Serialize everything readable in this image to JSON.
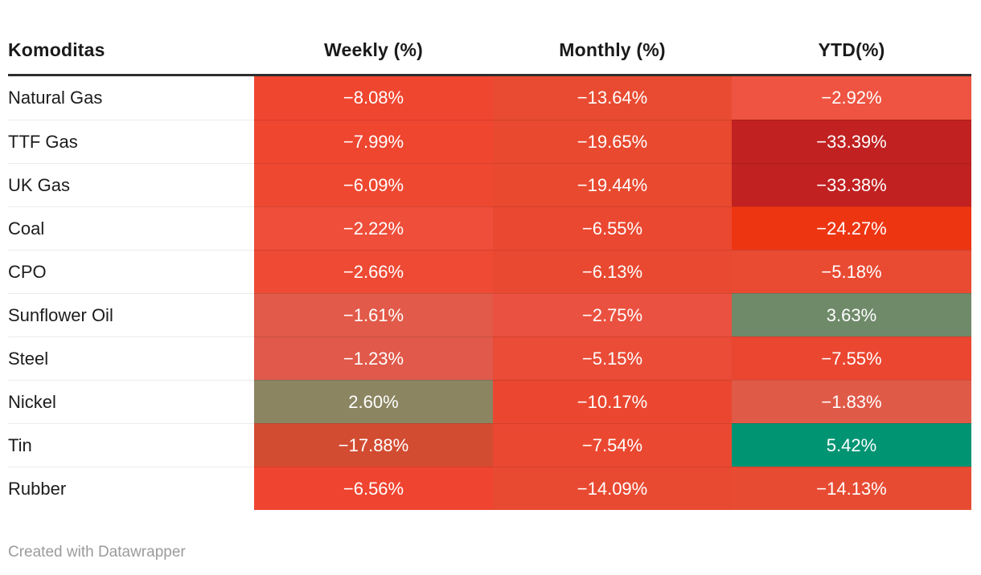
{
  "table": {
    "columns": [
      "Komoditas",
      "Weekly (%)",
      "Monthly (%)",
      "YTD(%)"
    ],
    "rows": [
      {
        "label": "Natural Gas",
        "cells": [
          {
            "text": "−8.08%",
            "bg": "#ef4630"
          },
          {
            "text": "−13.64%",
            "bg": "#e84b31"
          },
          {
            "text": "−2.92%",
            "bg": "#ee5441"
          }
        ]
      },
      {
        "label": "TTF Gas",
        "cells": [
          {
            "text": "−7.99%",
            "bg": "#ef4630"
          },
          {
            "text": "−19.65%",
            "bg": "#e8492f"
          },
          {
            "text": "−33.39%",
            "bg": "#c12121"
          }
        ]
      },
      {
        "label": "UK Gas",
        "cells": [
          {
            "text": "−6.09%",
            "bg": "#ee4831"
          },
          {
            "text": "−19.44%",
            "bg": "#e8492f"
          },
          {
            "text": "−33.38%",
            "bg": "#c12121"
          }
        ]
      },
      {
        "label": "Coal",
        "cells": [
          {
            "text": "−2.22%",
            "bg": "#ee4e3a"
          },
          {
            "text": "−6.55%",
            "bg": "#eb4831"
          },
          {
            "text": "−24.27%",
            "bg": "#ee3512"
          }
        ]
      },
      {
        "label": "CPO",
        "cells": [
          {
            "text": "−2.66%",
            "bg": "#ee4a34"
          },
          {
            "text": "−6.13%",
            "bg": "#e94931"
          },
          {
            "text": "−5.18%",
            "bg": "#e94a32"
          }
        ]
      },
      {
        "label": "Sunflower Oil",
        "cells": [
          {
            "text": "−1.61%",
            "bg": "#e25a49"
          },
          {
            "text": "−2.75%",
            "bg": "#eb5140"
          },
          {
            "text": "3.63%",
            "bg": "#6f8a69"
          }
        ]
      },
      {
        "label": "Steel",
        "cells": [
          {
            "text": "−1.23%",
            "bg": "#e0594a"
          },
          {
            "text": "−5.15%",
            "bg": "#ea4c37"
          },
          {
            "text": "−7.55%",
            "bg": "#eb4630"
          }
        ]
      },
      {
        "label": "Nickel",
        "cells": [
          {
            "text": "2.60%",
            "bg": "#8b8562"
          },
          {
            "text": "−10.17%",
            "bg": "#eb4730"
          },
          {
            "text": "−1.83%",
            "bg": "#e05a48"
          }
        ]
      },
      {
        "label": "Tin",
        "cells": [
          {
            "text": "−17.88%",
            "bg": "#d24c32"
          },
          {
            "text": "−7.54%",
            "bg": "#eb4831"
          },
          {
            "text": "5.42%",
            "bg": "#009473"
          }
        ]
      },
      {
        "label": "Rubber",
        "cells": [
          {
            "text": "−6.56%",
            "bg": "#ef4530"
          },
          {
            "text": "−14.09%",
            "bg": "#e84a31"
          },
          {
            "text": "−14.13%",
            "bg": "#e74c33"
          }
        ]
      }
    ]
  },
  "chart_data": {
    "type": "table",
    "subtype": "heatmap",
    "categories": [
      "Natural Gas",
      "TTF Gas",
      "UK Gas",
      "Coal",
      "CPO",
      "Sunflower Oil",
      "Steel",
      "Nickel",
      "Tin",
      "Rubber"
    ],
    "series": [
      {
        "name": "Weekly (%)",
        "values": [
          -8.08,
          -7.99,
          -6.09,
          -2.22,
          -2.66,
          -1.61,
          -1.23,
          2.6,
          -17.88,
          -6.56
        ]
      },
      {
        "name": "Monthly (%)",
        "values": [
          -13.64,
          -19.65,
          -19.44,
          -6.55,
          -6.13,
          -2.75,
          -5.15,
          -10.17,
          -7.54,
          -14.09
        ]
      },
      {
        "name": "YTD(%)",
        "values": [
          -2.92,
          -33.39,
          -33.38,
          -24.27,
          -5.18,
          3.63,
          -7.55,
          -1.83,
          5.42,
          -14.13
        ]
      }
    ],
    "row_header_label": "Komoditas",
    "palette": {
      "strong_negative": "#c12121",
      "negative": "#ee4831",
      "mild_negative": "#e0594a",
      "mild_positive": "#8b8562",
      "positive": "#6f8a69",
      "strong_positive": "#009473"
    }
  },
  "footer": {
    "credit": "Created with Datawrapper"
  }
}
